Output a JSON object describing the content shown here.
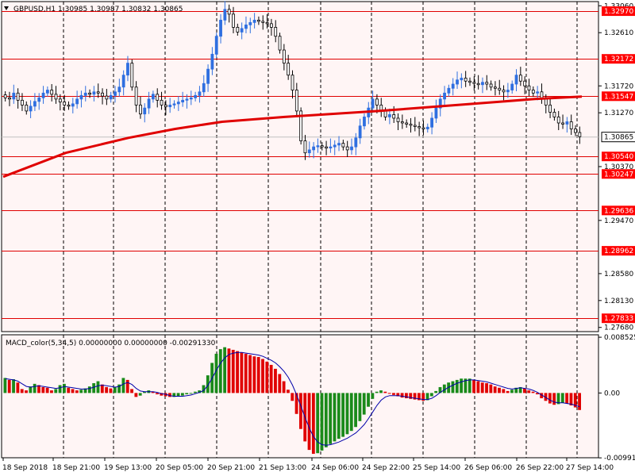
{
  "header": {
    "title": "GBPUSD,H1  1.30985 1.30987 1.30832 1.30865"
  },
  "macd_header": {
    "title": "MACD_color(5,34,5) 0.00000000 0.00000000 -0.00291330"
  },
  "colors": {
    "background": "#ffffff",
    "plot_bg": "#fff5f5",
    "grid": "#000000",
    "level_line": "#e00000",
    "ma_line": "#e00000",
    "candle_up": "#2f6fe0",
    "candle_down": "#000000",
    "macd_up": "#1a8a1a",
    "macd_down": "#e00000",
    "signal": "#0000aa",
    "label_bg": "#ff0000",
    "label_text": "#ffffff",
    "price_bg": "#ffffff"
  },
  "chart_data": [
    {
      "type": "candlestick",
      "symbol": "GBPUSD",
      "timeframe": "H1",
      "ohlc": {
        "open": 1.30985,
        "high": 1.30987,
        "low": 1.30832,
        "close": 1.30865
      },
      "ylim": [
        1.2761,
        1.3313
      ],
      "y_ticks": [
        1.3306,
        1.3261,
        1.3172,
        1.3127,
        1.3037,
        1.2947,
        1.2858,
        1.2813,
        1.2768
      ],
      "y_tick_labels": [
        "1.33060",
        "1.32610",
        "1.31720",
        "1.31270",
        "1.30370",
        "1.29470",
        "1.28580",
        "1.28130",
        "1.27680"
      ],
      "current_price": 1.30865,
      "current_price_label": "1.30865",
      "levels": [
        {
          "value": 1.3297,
          "label": "1.32970"
        },
        {
          "value": 1.32172,
          "label": "1.32172"
        },
        {
          "value": 1.31547,
          "label": "1.31547"
        },
        {
          "value": 1.3054,
          "label": "1.30540"
        },
        {
          "value": 1.30247,
          "label": "1.30247"
        },
        {
          "value": 1.29636,
          "label": "1.29636"
        },
        {
          "value": 1.28962,
          "label": "1.28962"
        },
        {
          "value": 1.27833,
          "label": "1.27833"
        }
      ],
      "x_labels": [
        "18 Sep 2018",
        "18 Sep 21:00",
        "19 Sep 13:00",
        "20 Sep 05:00",
        "20 Sep 21:00",
        "21 Sep 13:00",
        "24 Sep 06:00",
        "24 Sep 22:00",
        "25 Sep 14:00",
        "26 Sep 06:00",
        "26 Sep 22:00",
        "27 Sep 14:00"
      ],
      "close_series": [
        1.3152,
        1.315,
        1.316,
        1.3148,
        1.314,
        1.313,
        1.3138,
        1.3146,
        1.3152,
        1.316,
        1.3165,
        1.3158,
        1.315,
        1.3145,
        1.314,
        1.3138,
        1.3142,
        1.315,
        1.3156,
        1.316,
        1.3158,
        1.3162,
        1.316,
        1.3155,
        1.315,
        1.3156,
        1.3162,
        1.317,
        1.319,
        1.321,
        1.317,
        1.314,
        1.3125,
        1.3135,
        1.315,
        1.3158,
        1.3148,
        1.314,
        1.3137,
        1.314,
        1.3142,
        1.3145,
        1.3148,
        1.315,
        1.3152,
        1.3156,
        1.3162,
        1.3176,
        1.32,
        1.3225,
        1.3255,
        1.3282,
        1.33,
        1.3292,
        1.327,
        1.3262,
        1.3268,
        1.3274,
        1.3278,
        1.3282,
        1.328,
        1.3278,
        1.3276,
        1.327,
        1.3255,
        1.3232,
        1.321,
        1.319,
        1.3165,
        1.313,
        1.308,
        1.306,
        1.3065,
        1.307,
        1.3072,
        1.307,
        1.3068,
        1.307,
        1.3073,
        1.3076,
        1.307,
        1.3065,
        1.307,
        1.3085,
        1.3105,
        1.312,
        1.3135,
        1.315,
        1.314,
        1.313,
        1.312,
        1.3124,
        1.3118,
        1.3112,
        1.311,
        1.3108,
        1.3106,
        1.3104,
        1.3102,
        1.31,
        1.3103,
        1.3118,
        1.3135,
        1.315,
        1.316,
        1.3168,
        1.3175,
        1.3182,
        1.3185,
        1.318,
        1.3178,
        1.3176,
        1.3174,
        1.3178,
        1.3175,
        1.317,
        1.3168,
        1.3165,
        1.3162,
        1.3165,
        1.3175,
        1.319,
        1.318,
        1.3172,
        1.3165,
        1.316,
        1.3162,
        1.315,
        1.314,
        1.3128,
        1.312,
        1.311,
        1.3108,
        1.3112,
        1.31,
        1.3094,
        1.3087
      ],
      "ma_series": [
        [
          0,
          1.302
        ],
        [
          40,
          1.306
        ],
        [
          80,
          1.3085
        ],
        [
          110,
          1.31
        ],
        [
          140,
          1.3112
        ],
        [
          180,
          1.312
        ],
        [
          240,
          1.313
        ],
        [
          300,
          1.3142
        ],
        [
          340,
          1.315
        ],
        [
          370,
          1.3154
        ]
      ]
    },
    {
      "type": "histogram",
      "title": "MACD_color(5,34,5)",
      "ylim": [
        -0.0099,
        0.0089
      ],
      "y_ticks": [
        0.008525,
        0.0,
        -0.009915
      ],
      "y_tick_labels": [
        "0.008525",
        "0.00",
        "-0.009915"
      ],
      "values": [
        0.0023,
        0.002,
        0.0021,
        0.0016,
        0.0006,
        0.0004,
        0.001,
        0.0014,
        0.0012,
        0.0009,
        0.0008,
        0.0004,
        0.0006,
        0.0012,
        0.0014,
        0.0008,
        0.0006,
        0.0004,
        0.0005,
        0.0007,
        0.001,
        0.0015,
        0.0018,
        0.0013,
        0.0009,
        0.0007,
        0.0009,
        0.0013,
        0.0023,
        0.002,
        0.0006,
        -0.0006,
        -0.0004,
        0.0002,
        0.0004,
        0.0002,
        -0.0002,
        -0.0004,
        -0.0005,
        -0.0006,
        -0.0006,
        -0.0005,
        -0.0004,
        -0.0002,
        0.0,
        0.0002,
        0.0004,
        0.0012,
        0.0027,
        0.0046,
        0.006,
        0.0067,
        0.007,
        0.0068,
        0.0066,
        0.0064,
        0.0062,
        0.006,
        0.0058,
        0.0056,
        0.0055,
        0.0052,
        0.0048,
        0.0043,
        0.0037,
        0.0029,
        0.0018,
        0.0005,
        -0.0012,
        -0.0032,
        -0.0055,
        -0.0074,
        -0.0087,
        -0.0093,
        -0.0092,
        -0.0088,
        -0.0083,
        -0.0078,
        -0.0074,
        -0.007,
        -0.0067,
        -0.0063,
        -0.0058,
        -0.0052,
        -0.0043,
        -0.0033,
        -0.0021,
        -0.0009,
        0.0002,
        0.0004,
        0.0002,
        -0.0001,
        -0.0003,
        -0.0005,
        -0.0007,
        -0.0008,
        -0.0009,
        -0.001,
        -0.0011,
        -0.0012,
        -0.0011,
        -0.0005,
        0.0003,
        0.0009,
        0.0013,
        0.0016,
        0.0018,
        0.002,
        0.0022,
        0.0022,
        0.0022,
        0.002,
        0.0018,
        0.0016,
        0.0015,
        0.0013,
        0.001,
        0.0008,
        0.0006,
        0.0003,
        0.0005,
        0.0008,
        0.0009,
        0.0007,
        0.0004,
        0.0002,
        -0.0002,
        -0.0008,
        -0.0012,
        -0.0016,
        -0.0018,
        -0.0017,
        -0.0015,
        -0.0016,
        -0.0019,
        -0.0022,
        -0.0026
      ],
      "signal": [
        0.0022,
        0.0021,
        0.002,
        0.0018,
        0.0014,
        0.001,
        0.0009,
        0.001,
        0.0011,
        0.001,
        0.0009,
        0.0008,
        0.0007,
        0.0008,
        0.001,
        0.0009,
        0.0008,
        0.0007,
        0.0006,
        0.0006,
        0.0007,
        0.0009,
        0.0011,
        0.0012,
        0.0011,
        0.001,
        0.0009,
        0.001,
        0.0014,
        0.0016,
        0.0013,
        0.0007,
        0.0003,
        0.0002,
        0.0002,
        0.0002,
        0.0001,
        -0.0001,
        -0.0002,
        -0.0004,
        -0.0005,
        -0.0005,
        -0.0005,
        -0.0004,
        -0.0003,
        -0.0001,
        0.0001,
        0.0004,
        0.0012,
        0.0023,
        0.0035,
        0.0046,
        0.0054,
        0.0059,
        0.0061,
        0.0062,
        0.0062,
        0.0061,
        0.006,
        0.0059,
        0.0058,
        0.0056,
        0.0053,
        0.005,
        0.0046,
        0.004,
        0.0033,
        0.0024,
        0.0012,
        -0.0003,
        -0.002,
        -0.0038,
        -0.0054,
        -0.0067,
        -0.0075,
        -0.0079,
        -0.008,
        -0.0079,
        -0.0077,
        -0.0075,
        -0.0072,
        -0.0069,
        -0.0065,
        -0.0061,
        -0.0055,
        -0.0048,
        -0.0039,
        -0.0029,
        -0.0019,
        -0.0011,
        -0.0006,
        -0.0004,
        -0.0004,
        -0.0004,
        -0.0005,
        -0.0006,
        -0.0007,
        -0.0008,
        -0.0009,
        -0.001,
        -0.001,
        -0.0008,
        -0.0004,
        0.0001,
        0.0005,
        0.0009,
        0.0012,
        0.0015,
        0.0017,
        0.0019,
        0.002,
        0.002,
        0.0019,
        0.0018,
        0.0017,
        0.0015,
        0.0013,
        0.0011,
        0.0009,
        0.0007,
        0.0006,
        0.0007,
        0.0008,
        0.0007,
        0.0006,
        0.0004,
        0.0001,
        -0.0003,
        -0.0007,
        -0.0011,
        -0.0014,
        -0.0015,
        -0.0015,
        -0.0016,
        -0.0017,
        -0.0019,
        -0.0021
      ]
    }
  ]
}
